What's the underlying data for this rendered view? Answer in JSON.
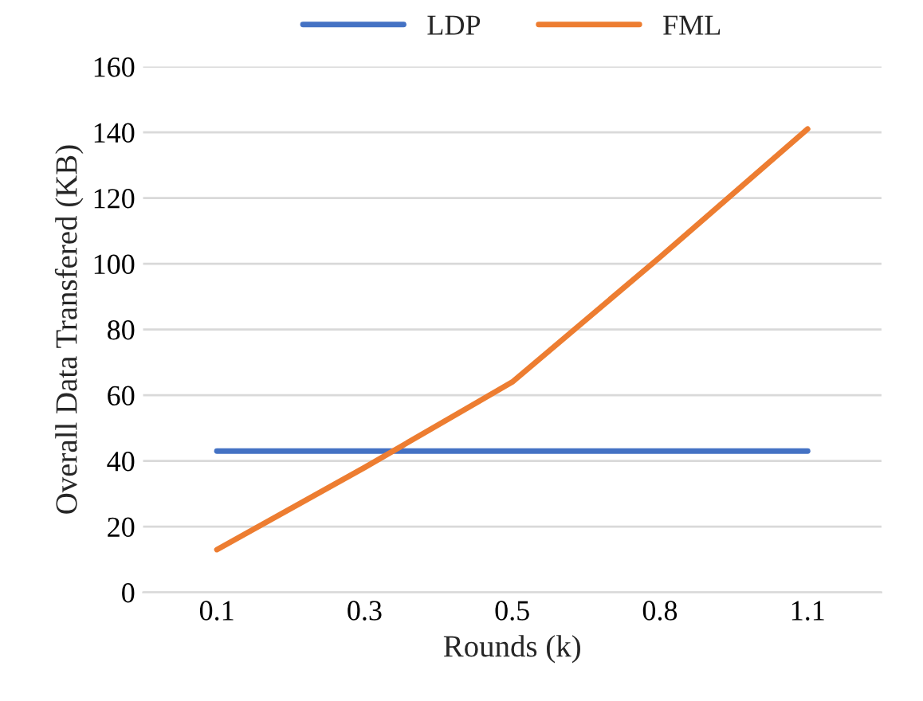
{
  "chart_data": {
    "type": "line",
    "xlabel": "Rounds (k)",
    "ylabel": "Overall Data Transfered (KB)",
    "categories": [
      "0.1",
      "0.3",
      "0.5",
      "0.8",
      "1.1"
    ],
    "series": [
      {
        "name": "LDP",
        "color": "#4472c4",
        "values": [
          43,
          43,
          43,
          43,
          43
        ]
      },
      {
        "name": "FML",
        "color": "#ed7d31",
        "values": [
          13,
          38,
          64,
          102,
          141
        ]
      }
    ],
    "ylim": [
      0,
      160
    ],
    "yticks": [
      0,
      20,
      40,
      60,
      80,
      100,
      120,
      140,
      160
    ],
    "grid": "y",
    "legend": "top",
    "marker": "none",
    "line_style": "solid"
  }
}
